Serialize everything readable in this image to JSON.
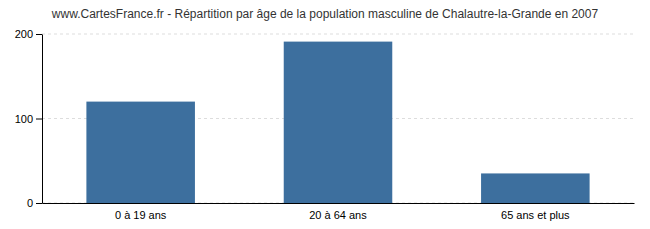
{
  "chart_data": {
    "type": "bar",
    "title": "www.CartesFrance.fr - Répartition par âge de la population masculine de Chalautre-la-Grande en 2007",
    "categories": [
      "0 à 19 ans",
      "20 à 64 ans",
      "65 ans et plus"
    ],
    "values": [
      120,
      191,
      35
    ],
    "color": "#3d6f9e",
    "ylim": [
      0,
      200
    ],
    "yticks": [
      0,
      100,
      200
    ],
    "grid": true
  }
}
